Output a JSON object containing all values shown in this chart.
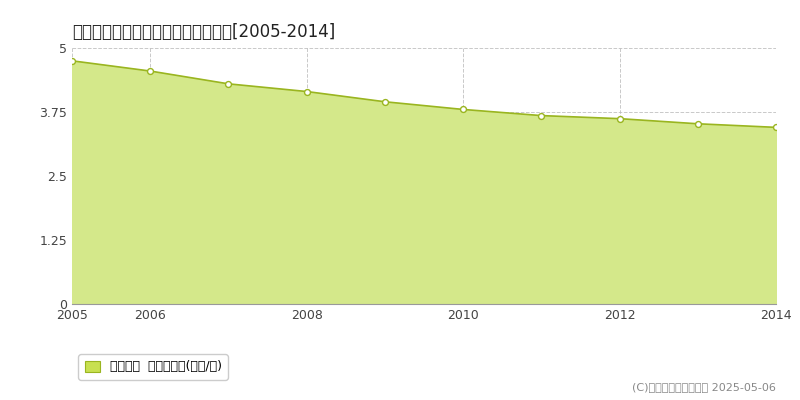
{
  "title": "鹿島郡中能登町高畠　基準地価推移[2005-2014]",
  "years": [
    2005,
    2006,
    2007,
    2008,
    2009,
    2010,
    2011,
    2012,
    2013,
    2014
  ],
  "values": [
    4.75,
    4.55,
    4.3,
    4.15,
    3.95,
    3.8,
    3.68,
    3.62,
    3.52,
    3.45
  ],
  "ylim": [
    0,
    5
  ],
  "yticks": [
    0,
    1.25,
    2.5,
    3.75,
    5
  ],
  "ytick_labels": [
    "0",
    "1.25",
    "2.5",
    "3.75",
    "5"
  ],
  "xtick_positions": [
    2005,
    2006,
    2008,
    2010,
    2012,
    2014
  ],
  "xtick_labels": [
    "2005",
    "2006",
    "2008",
    "2010",
    "2012",
    "2014"
  ],
  "line_color": "#9ab520",
  "fill_color": "#d4e88a",
  "marker_facecolor": "#ffffff",
  "marker_edgecolor": "#9ab520",
  "bg_color": "#ffffff",
  "plot_bg_color": "#ffffff",
  "grid_color": "#bbbbbb",
  "legend_label": "基準地価  平均坪単価(万円/坪)",
  "legend_patch_color": "#c8e050",
  "legend_patch_edge": "#9ab520",
  "copyright_text": "(C)土地価格ドットコム 2025-05-06",
  "title_fontsize": 12,
  "axis_fontsize": 9,
  "legend_fontsize": 9,
  "copyright_fontsize": 8
}
